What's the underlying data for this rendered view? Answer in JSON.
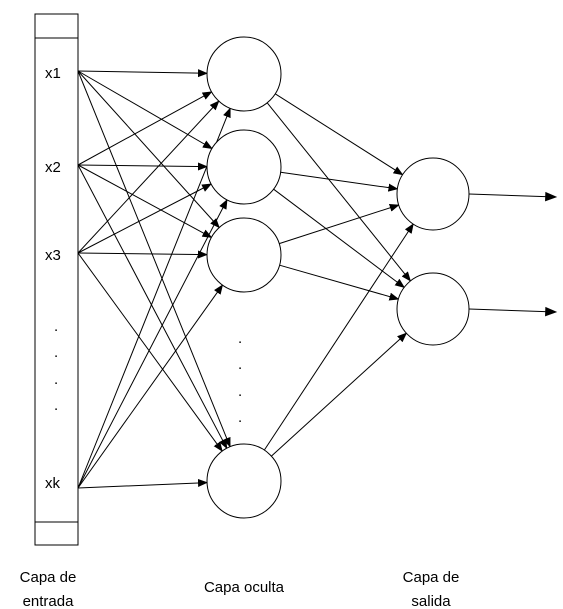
{
  "input_layer": {
    "nodes": [
      "x1",
      "x2",
      "x3",
      "xk"
    ],
    "ellipsis": [
      ".",
      ".",
      ".",
      "."
    ],
    "label_line1": "Capa de",
    "label_line2": "entrada"
  },
  "hidden_layer": {
    "ellipsis": [
      ".",
      ".",
      ".",
      "."
    ],
    "label": "Capa oculta"
  },
  "output_layer": {
    "label_line1": "Capa de",
    "label_line2": "salida"
  },
  "colors": {
    "stroke": "#000000",
    "background": "#ffffff"
  }
}
